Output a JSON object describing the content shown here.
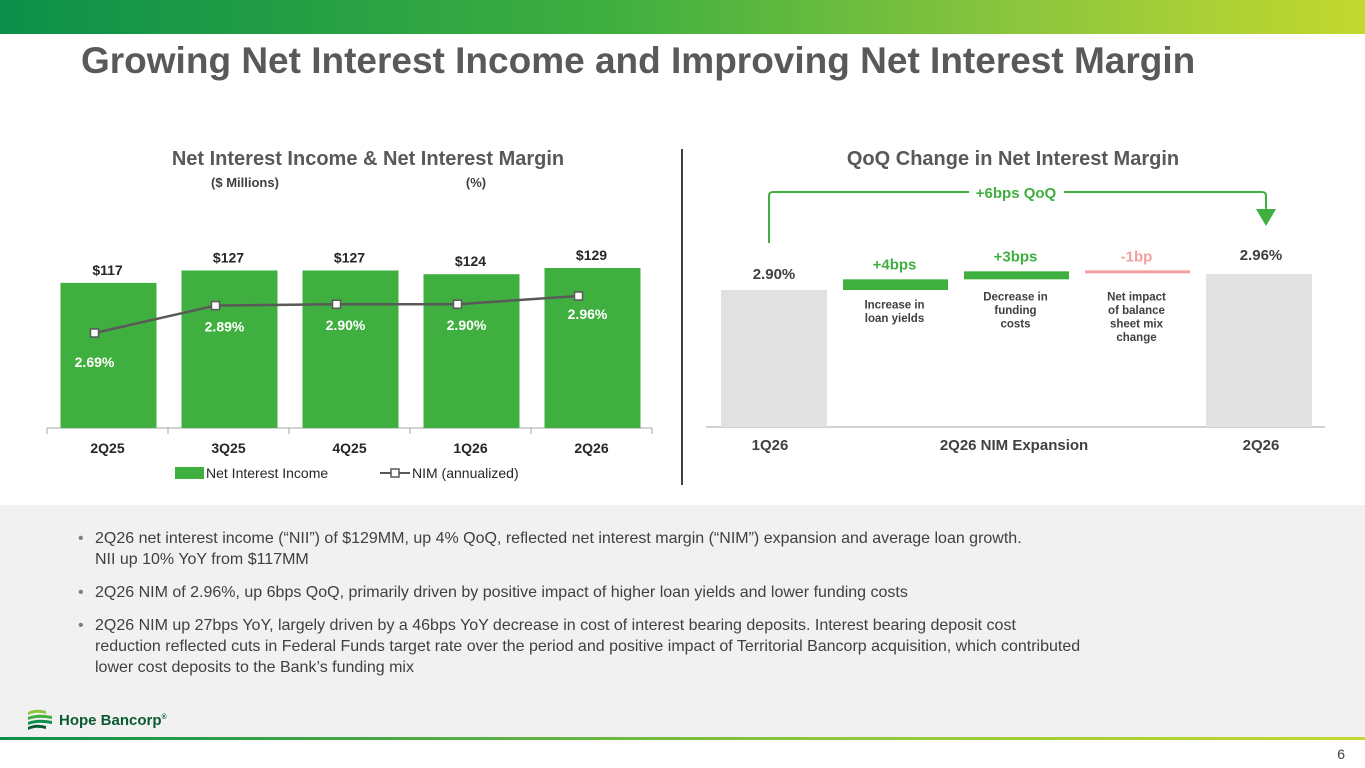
{
  "page": {
    "title": "Growing Net Interest Income and Improving Net Interest Margin",
    "page_number": "6"
  },
  "colors": {
    "green": "#3faf3f",
    "gray_bar": "#e1e1e1",
    "negative": "#f4a0a0",
    "line": "#595959"
  },
  "chart_data": [
    {
      "type": "bar",
      "title": "Net Interest Income & Net Interest Margin",
      "subtitle_left": "($ Millions)",
      "subtitle_right": "(%)",
      "categories": [
        "2Q25",
        "3Q25",
        "4Q25",
        "1Q26",
        "2Q26"
      ],
      "series": [
        {
          "name": "Net Interest Income",
          "type": "bar",
          "values": [
            117,
            127,
            127,
            124,
            129
          ],
          "labels": [
            "$117",
            "$127",
            "$127",
            "$124",
            "$129"
          ]
        },
        {
          "name": "NIM (annualized)",
          "type": "line",
          "values": [
            2.69,
            2.89,
            2.9,
            2.9,
            2.96
          ],
          "labels": [
            "2.69%",
            "2.89%",
            "2.90%",
            "2.90%",
            "2.96%"
          ]
        }
      ],
      "legend_placement": "bottom-center",
      "grid": false
    },
    {
      "type": "waterfall",
      "title": "QoQ Change in Net Interest Margin",
      "axis_labels": [
        "1Q26",
        "2Q26 NIM Expansion",
        "2Q26"
      ],
      "start": {
        "value": 2.9,
        "label": "2.90%"
      },
      "end": {
        "value": 2.96,
        "label": "2.96%"
      },
      "steps": [
        {
          "value": 0.04,
          "label": "+4bps",
          "description": [
            "Increase in",
            "loan yields"
          ]
        },
        {
          "value": 0.03,
          "label": "+3bps",
          "description": [
            "Decrease in",
            "funding",
            "costs"
          ]
        },
        {
          "value": -0.01,
          "label": "-1bp",
          "description": [
            "Net impact",
            "of balance",
            "sheet mix",
            "change"
          ]
        }
      ],
      "annotation": "+6bps QoQ"
    }
  ],
  "bullets": [
    [
      "2Q26 net interest income (“NII”) of $129MM, up 4% QoQ, reflected net interest margin (“NIM”) expansion and average loan growth.",
      "NII up 10% YoY from $117MM"
    ],
    [
      "2Q26 NIM of 2.96%, up 6bps QoQ, primarily driven by positive impact of higher loan yields and lower funding costs"
    ],
    [
      "2Q26 NIM up 27bps YoY, largely driven by a 46bps YoY decrease in cost of interest bearing deposits. Interest bearing deposit cost",
      "reduction reflected cuts in Federal Funds target rate over the period and positive impact of Territorial Bancorp acquisition, which contributed",
      "lower cost deposits to the Bank’s funding mix"
    ]
  ],
  "logo": {
    "name": "Hope Bancorp",
    "mark": "®"
  }
}
